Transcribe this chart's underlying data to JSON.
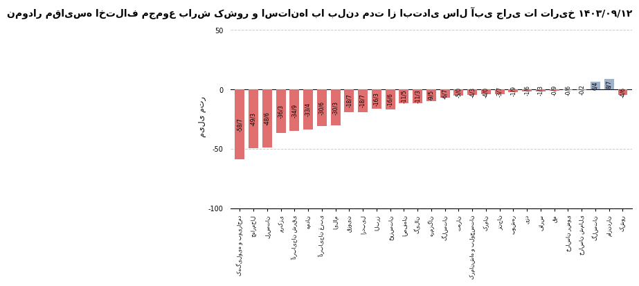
{
  "title": "نمودار مقایسه اختلاف مجموع بارش کشور و استان‌ها با بلند مدت از ابتدای سال آبی جاری تا تاریخ ۱۴۰۳/۰۹/۱۲",
  "ylabel": "میلی متر",
  "ylim": [
    -100,
    55
  ],
  "yticks": [
    -100,
    -50,
    0,
    50
  ],
  "categories": [
    "کهگیلویه و بویراحمد",
    "چهارمحال",
    "لرستان",
    "مرکزی",
    "آذربایجان شرقی",
    "همدان",
    "آذربایجان غربی",
    "ایلام",
    "قزوین",
    "اردبیل",
    "البرز",
    "خوزستان",
    "اصفهان",
    "گیلان",
    "هرمزگان",
    "گلستان",
    "تهران",
    "کرمانشاه و بلوچستان",
    "کرمان",
    "زنجان",
    "بوشهر",
    "یزد",
    "فارس",
    "قم",
    "خراسان رضوی",
    "خراسان شمالی",
    "گلستان",
    "مازندران",
    "کشور"
  ],
  "values": [
    -58.7,
    -49.3,
    -48.6,
    -36.3,
    -34.9,
    -33.4,
    -30.6,
    -30.3,
    -18.7,
    -18.7,
    -16.3,
    -16.6,
    -11.5,
    -11.3,
    -9.5,
    -6.7,
    -5.0,
    -4.3,
    -4.0,
    -3.7,
    -1.9,
    -1.6,
    -1.3,
    -0.9,
    -0.6,
    -0.2,
    6.4,
    8.7,
    -4.6
  ],
  "bar_color_negative": "#E07070",
  "bar_color_positive": "#A0B0C8",
  "bar_color_country_negative": "#E07070",
  "title_fontsize": 10,
  "ylabel_fontsize": 8,
  "tick_fontsize": 7,
  "background_color": "#ffffff",
  "grid_color": "#cccccc"
}
